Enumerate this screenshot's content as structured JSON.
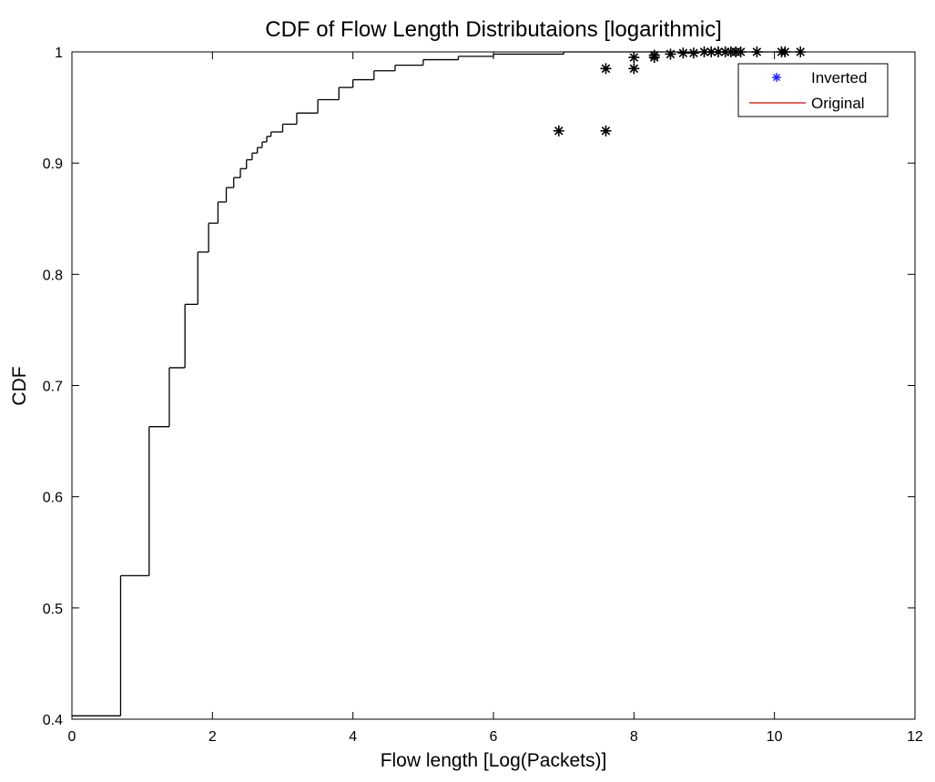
{
  "chart_data": {
    "type": "line",
    "title": "CDF of Flow Length Distributaions [logarithmic]",
    "xlabel": "Flow length [Log(Packets)]",
    "ylabel": "CDF",
    "xlim": [
      0,
      12
    ],
    "ylim": [
      0.4,
      1
    ],
    "xticks": [
      0,
      2,
      4,
      6,
      8,
      10,
      12
    ],
    "yticks": [
      0.4,
      0.5,
      0.6,
      0.7,
      0.8,
      0.9,
      1
    ],
    "grid": false,
    "legend": "northeast",
    "plot_color": "#000000",
    "series": [
      {
        "name": "Inverted",
        "type": "scatter",
        "color": "#2020ff",
        "x": [
          6.93,
          7.6,
          7.6,
          8.0,
          8.0,
          8.29,
          8.29,
          8.52,
          8.7,
          8.85,
          9.0,
          9.1,
          9.2,
          9.3,
          9.38,
          9.45,
          9.52,
          9.75,
          10.1,
          10.15,
          10.37
        ],
        "values": [
          0.929,
          0.929,
          0.985,
          0.985,
          0.995,
          0.995,
          0.997,
          0.998,
          0.999,
          0.999,
          1,
          1,
          1,
          1,
          1,
          1,
          1,
          1,
          1,
          1,
          1
        ]
      },
      {
        "name": "Original",
        "type": "step",
        "color": "#e00000",
        "x": [
          0,
          0.693,
          1.099,
          1.386,
          1.609,
          1.792,
          1.946,
          2.079,
          2.197,
          2.303,
          2.398,
          2.485,
          2.565,
          2.639,
          2.708,
          2.773,
          2.833,
          3.0,
          3.2,
          3.5,
          3.8,
          4.0,
          4.3,
          4.6,
          5.0,
          5.5,
          6.0,
          7.0,
          10.37
        ],
        "values": [
          0.403,
          0.529,
          0.663,
          0.716,
          0.773,
          0.82,
          0.846,
          0.865,
          0.878,
          0.887,
          0.895,
          0.903,
          0.909,
          0.914,
          0.919,
          0.924,
          0.928,
          0.935,
          0.945,
          0.957,
          0.968,
          0.975,
          0.983,
          0.988,
          0.993,
          0.996,
          0.998,
          1,
          1
        ]
      }
    ]
  }
}
